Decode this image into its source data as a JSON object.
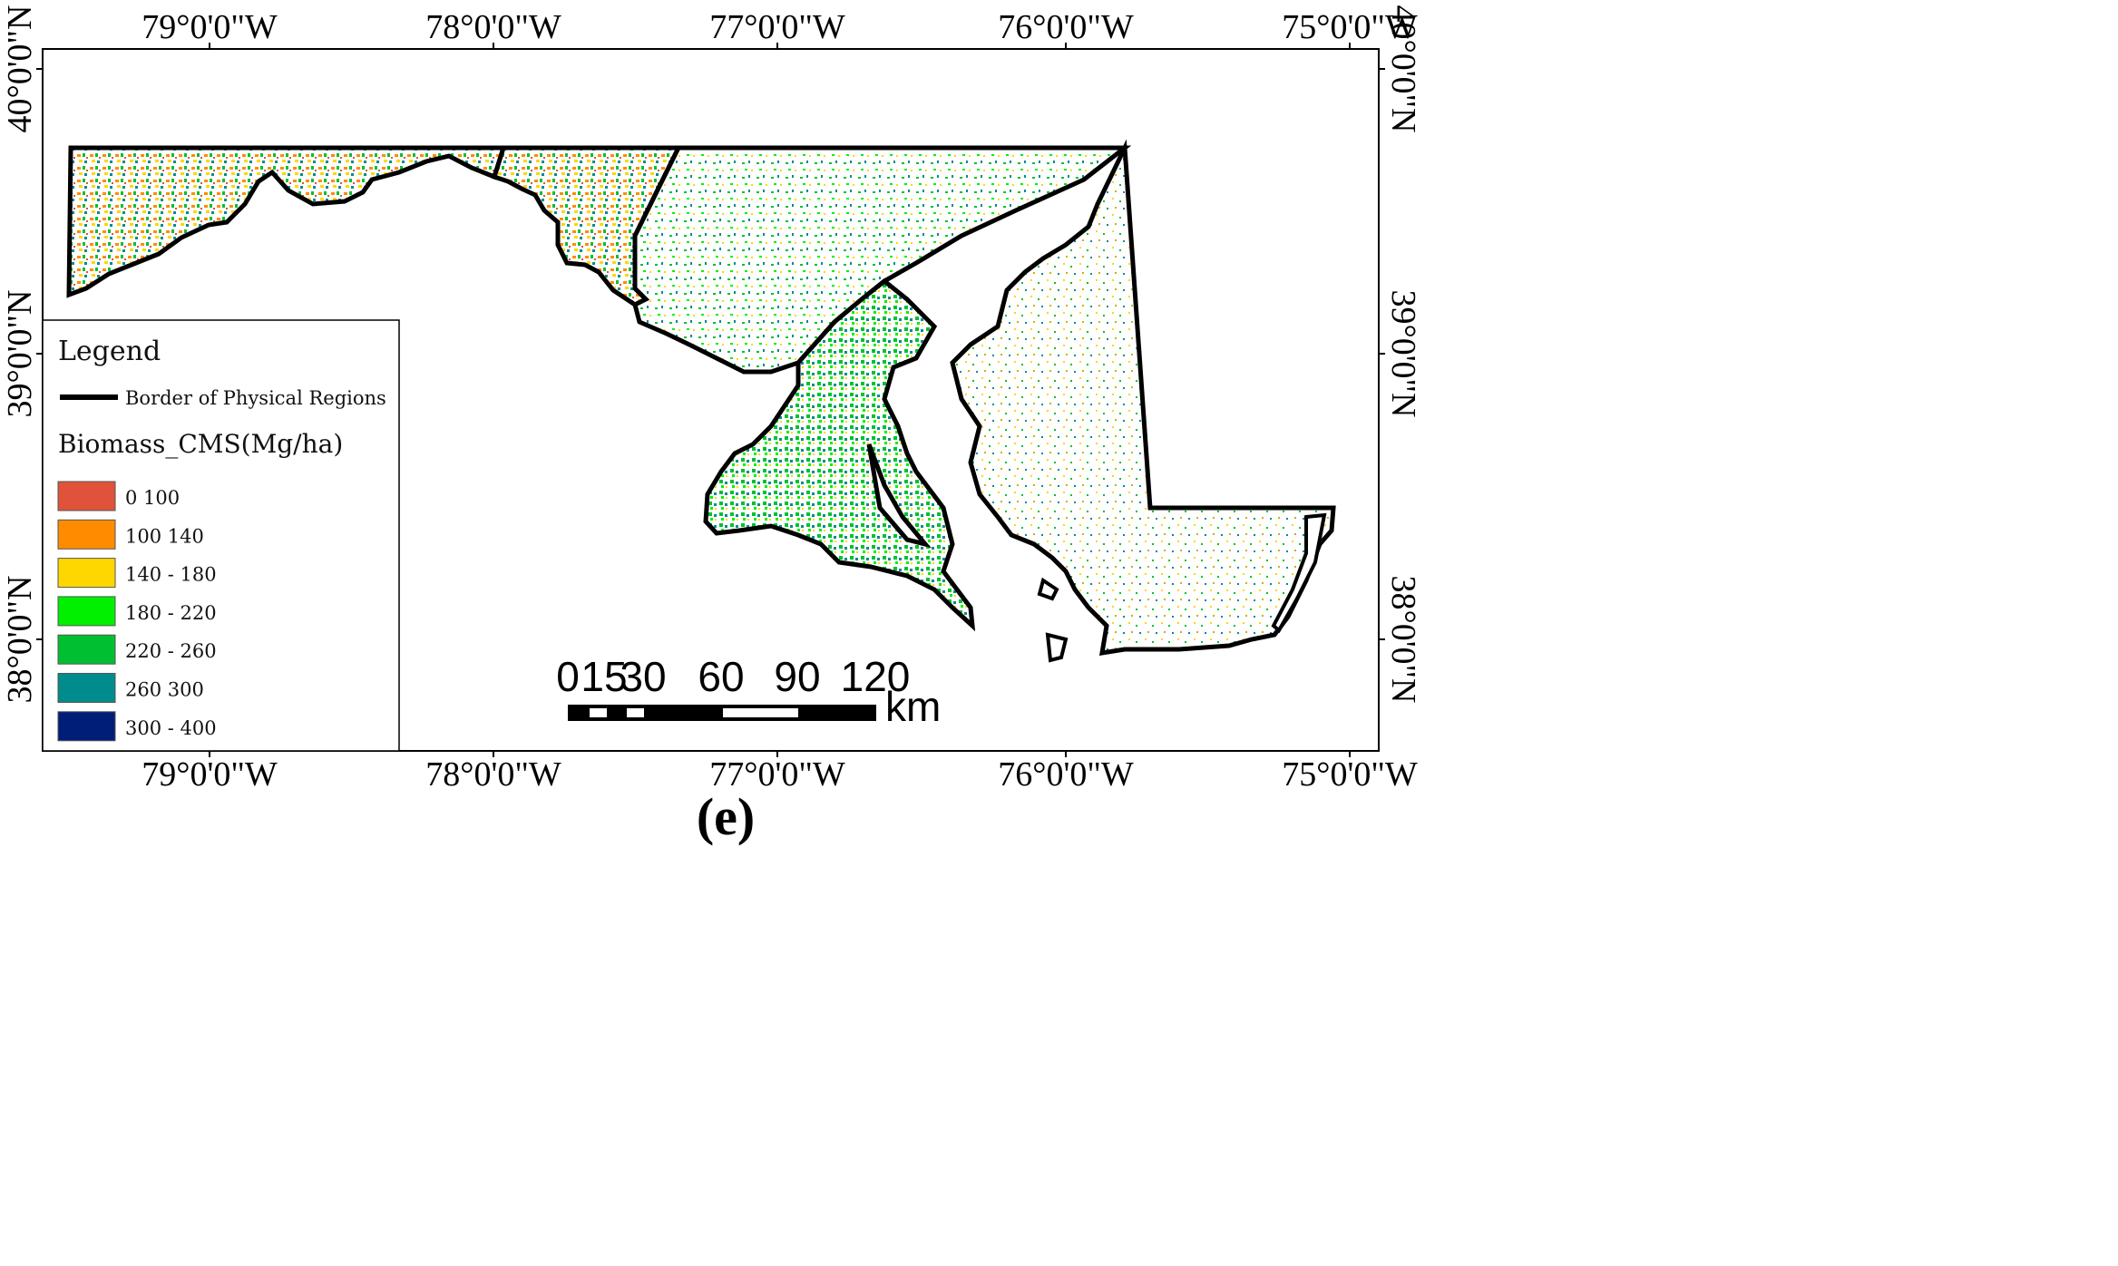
{
  "map": {
    "top_longitudes": [
      "79°0'0\"W",
      "78°0'0\"W",
      "77°0'0\"W",
      "76°0'0\"W",
      "75°0'0\"W"
    ],
    "bottom_longitudes": [
      "79°0'0\"W",
      "78°0'0\"W",
      "77°0'0\"W",
      "76°0'0\"W",
      "75°0'0\"W"
    ],
    "left_latitudes": [
      "40°0'0\"N",
      "39°0'0\"N",
      "38°0'0\"N"
    ],
    "right_latitudes": [
      "40°0'0\"N",
      "39°0'0\"N",
      "38°0'0\"N"
    ]
  },
  "legend": {
    "title": "Legend",
    "border_label": "Border of Physical Regions",
    "biomass_title": "Biomass_CMS(Mg/ha)",
    "classes": [
      {
        "label": "0    100",
        "color": "#e0533a"
      },
      {
        "label": "100    140",
        "color": "#ff8c00"
      },
      {
        "label": "140 - 180",
        "color": "#ffd700"
      },
      {
        "label": "180 - 220",
        "color": "#00f000"
      },
      {
        "label": "220 - 260",
        "color": "#00c032"
      },
      {
        "label": "260    300",
        "color": "#008c8c"
      },
      {
        "label": "300 - 400",
        "color": "#001e78"
      }
    ]
  },
  "scale_bar": {
    "labels": [
      "0",
      "15",
      "30",
      "60",
      "90",
      "120"
    ],
    "unit": "km"
  },
  "panel_label": "(e)"
}
